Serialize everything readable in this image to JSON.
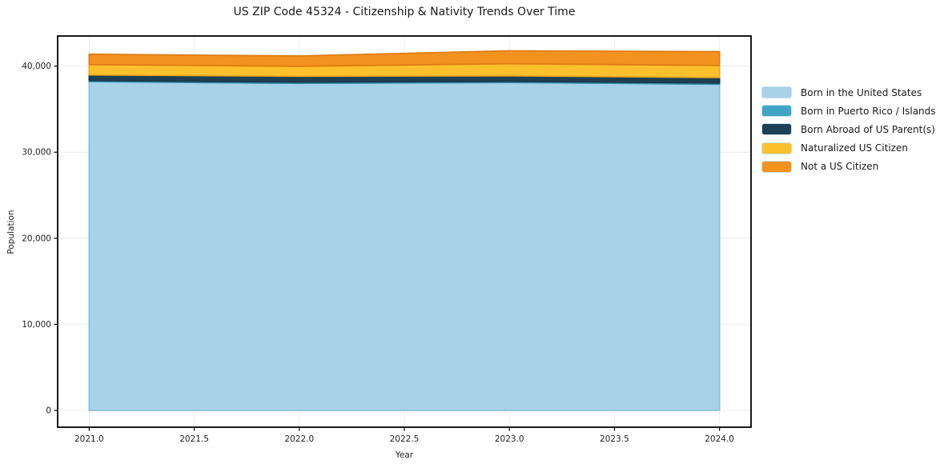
{
  "title": "US ZIP Code 45324 - Citizenship & Nativity Trends Over Time",
  "chart_data": {
    "type": "area",
    "stacked": true,
    "title": "US ZIP Code 45324 - Citizenship & Nativity Trends Over Time",
    "xlabel": "Year",
    "ylabel": "Population",
    "x": [
      2021,
      2022,
      2023,
      2024
    ],
    "series": [
      {
        "name": "Born in the United States",
        "color": "#A7D2E8",
        "edge_color": "#8CC1DB",
        "values": [
          38200,
          38000,
          38100,
          37900
        ]
      },
      {
        "name": "Born in Puerto Rico / Islands",
        "color": "#41A4C4",
        "edge_color": "#3691B0",
        "values": [
          130,
          130,
          130,
          130
        ]
      },
      {
        "name": "Born Abroad of US Parent(s)",
        "color": "#1E4054",
        "edge_color": "#1A3849",
        "values": [
          650,
          700,
          650,
          650
        ]
      },
      {
        "name": "Naturalized US Citizen",
        "color": "#FCC02D",
        "edge_color": "#EFA91C",
        "values": [
          1200,
          1150,
          1400,
          1400
        ]
      },
      {
        "name": "Not a US Citizen",
        "color": "#F3921E",
        "edge_color": "#DE7D14",
        "values": [
          1200,
          1200,
          1500,
          1600
        ]
      }
    ],
    "totals": [
      41380,
      41180,
      41780,
      41680
    ],
    "xticks": [
      2021.0,
      2021.5,
      2022.0,
      2022.5,
      2023.0,
      2023.5,
      2024.0
    ],
    "xtick_labels": [
      "2021.0",
      "2021.5",
      "2022.0",
      "2022.5",
      "2023.0",
      "2023.5",
      "2024.0"
    ],
    "yticks": [
      0,
      10000,
      20000,
      30000,
      40000
    ],
    "ytick_labels": [
      "0",
      "10,000",
      "20,000",
      "30,000",
      "40,000"
    ],
    "xlim": [
      2020.85,
      2024.15
    ],
    "ylim": [
      -1950,
      43500
    ],
    "grid": true,
    "grid_color": "#ececec",
    "spine_color": "#000000",
    "background_color": "#ffffff",
    "legend_position": "right"
  }
}
